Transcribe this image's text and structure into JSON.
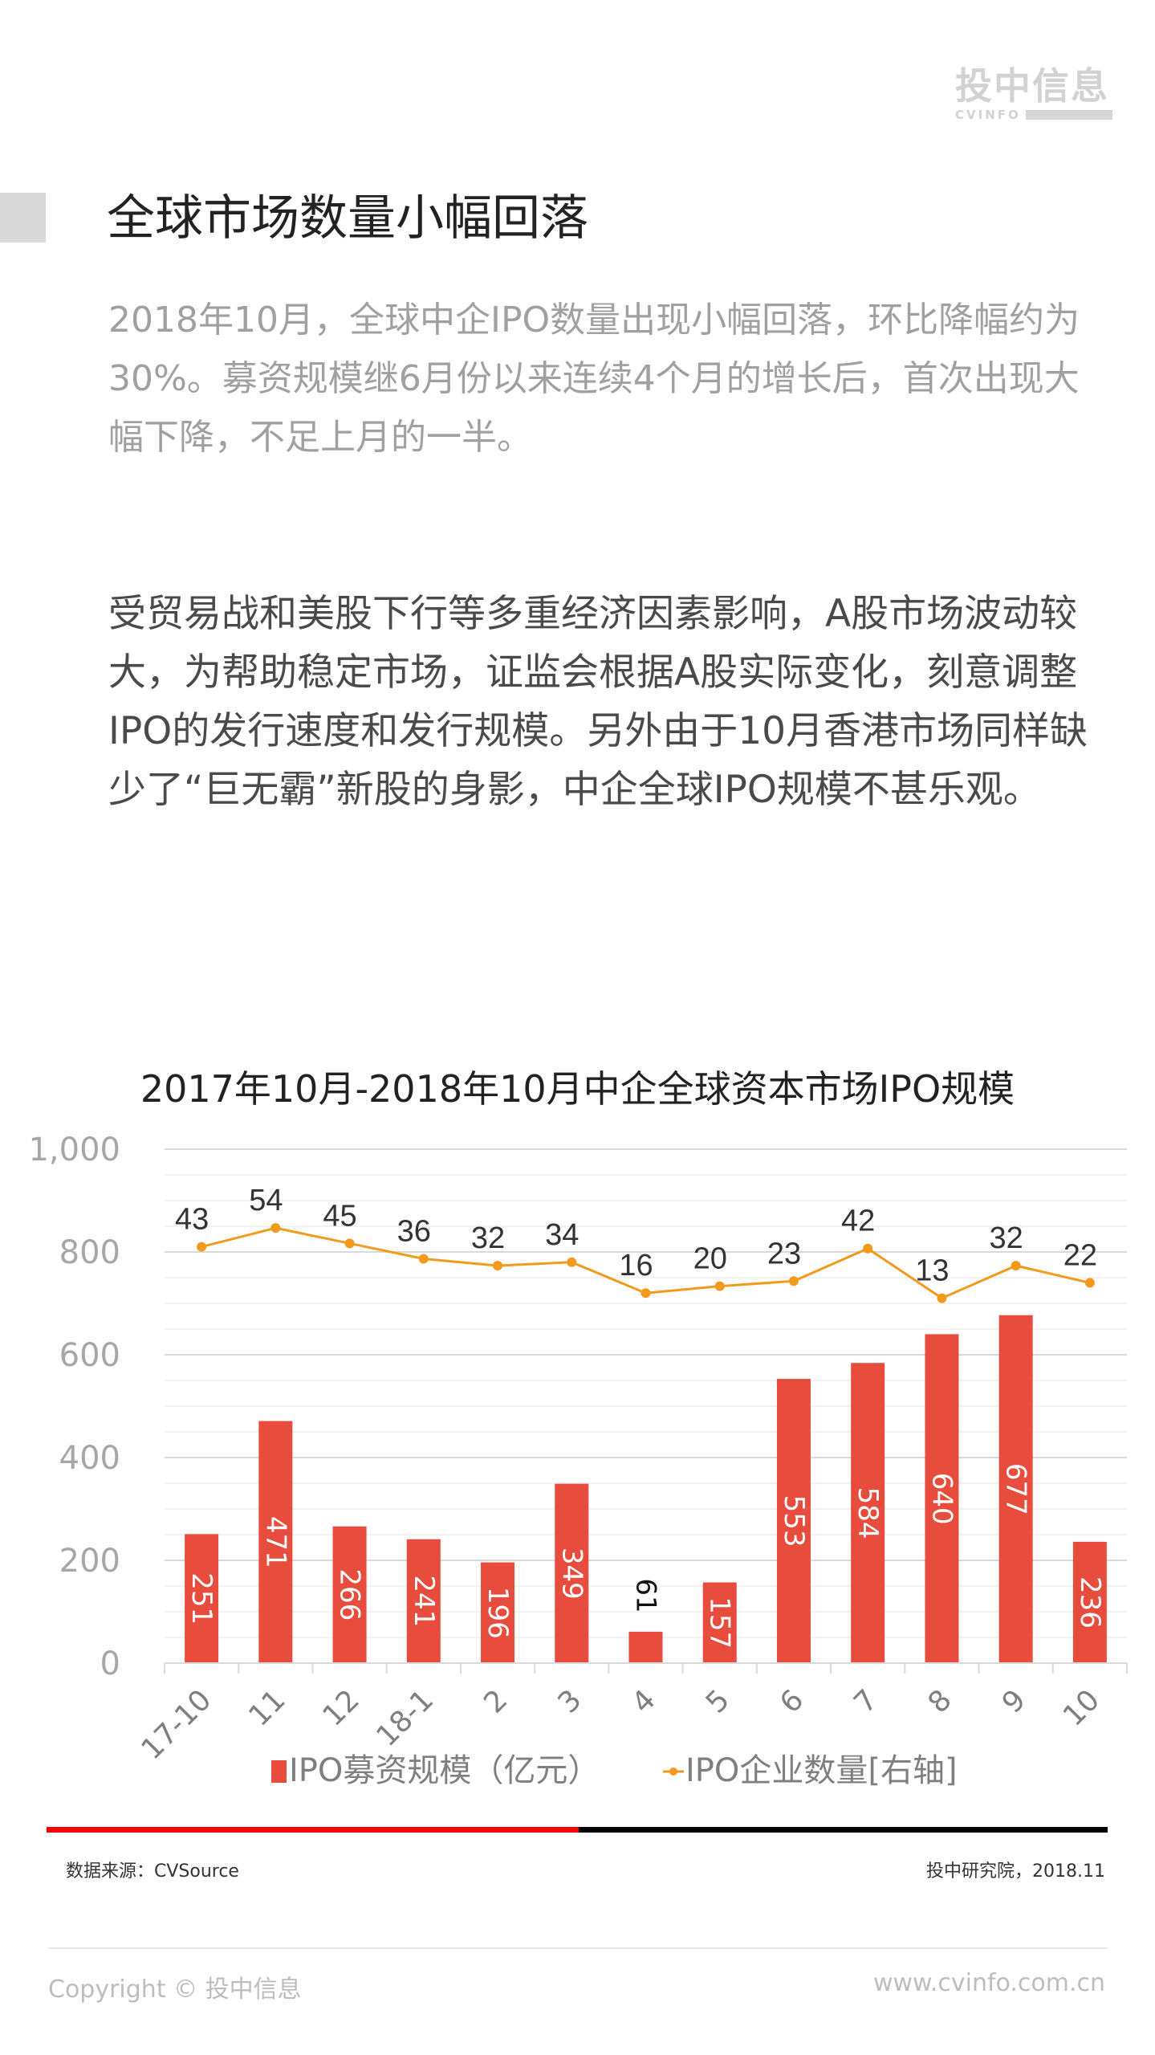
{
  "brand": {
    "logo_cn": "投中信息",
    "logo_en": "CVINFO"
  },
  "header": {
    "title": "全球市场数量小幅回落"
  },
  "lead_paragraph": "2018年10月，全球中企IPO数量出现小幅回落，环比降幅约为30%。募资规模继6月份以来连续4个月的增长后，首次出现大幅下降，不足上月的一半。",
  "body_paragraph": "受贸易战和美股下行等多重经济因素影响，A股市场波动较大，为帮助稳定市场，证监会根据A股实际变化，刻意调整IPO的发行速度和发行规模。另外由于10月香港市场同样缺少了“巨无霸”新股的身影，中企全球IPO规模不甚乐观。",
  "chart_data": {
    "type": "bar+line",
    "title": "2017年10月-2018年10月中企全球资本市场IPO规模",
    "categories": [
      "17-10",
      "11",
      "12",
      "18-1",
      "2",
      "3",
      "4",
      "5",
      "6",
      "7",
      "8",
      "9",
      "10"
    ],
    "series": [
      {
        "name": "IPO募资规模（亿元）",
        "type": "bar",
        "axis": "left",
        "color": "#e84c3d",
        "values": [
          251,
          471,
          266,
          241,
          196,
          349,
          61,
          157,
          553,
          584,
          640,
          677,
          236
        ]
      },
      {
        "name": "IPO企业数量[右轴]",
        "type": "line",
        "axis": "right",
        "color": "#f39a1c",
        "values": [
          43,
          54,
          45,
          36,
          32,
          34,
          16,
          20,
          23,
          42,
          13,
          32,
          22
        ]
      }
    ],
    "y_left": {
      "ticks": [
        "0",
        "200",
        "400",
        "600",
        "800",
        "1,000"
      ],
      "range": [
        0,
        1000
      ]
    },
    "y_right": {
      "range": [
        -200,
        100
      ],
      "visible": false
    },
    "grid": true,
    "legend_position": "bottom",
    "xlabel": "",
    "ylabel": ""
  },
  "footer_note": {
    "source": "数据来源：CVSource",
    "credit": "投中研究院，2018.11"
  },
  "footer": {
    "copyright": "Copyright © 投中信息",
    "website": "www.cvinfo.com.cn"
  },
  "colors": {
    "bar": "#e84c3d",
    "line": "#f39a1c",
    "rule_red": "#ff0000",
    "rule_black": "#000000"
  }
}
